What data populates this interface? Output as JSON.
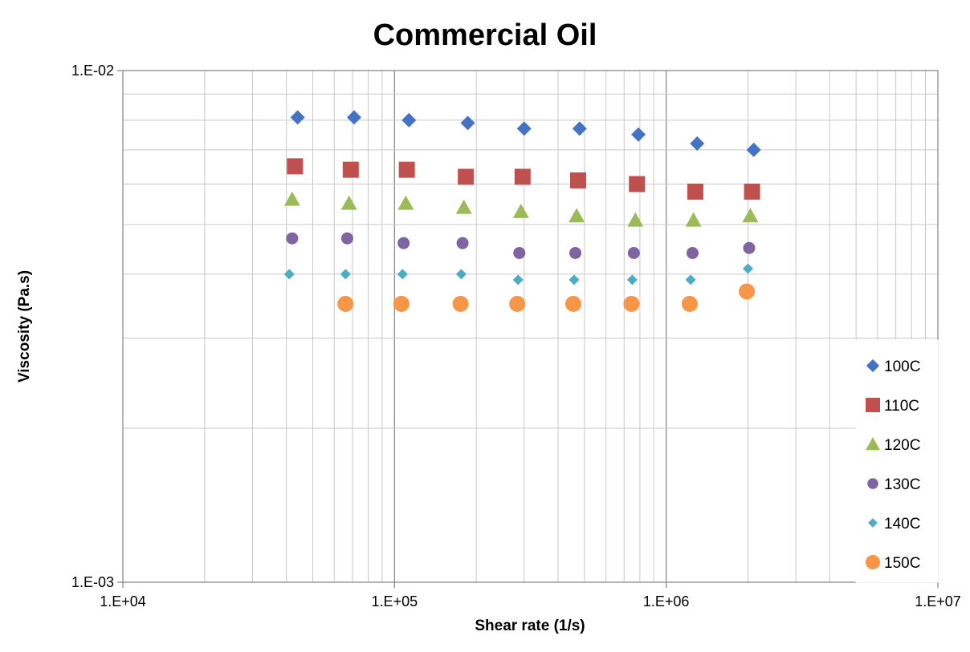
{
  "chart_data": {
    "type": "scatter",
    "title": "Commercial Oil",
    "xlabel": "Shear rate (1/s)",
    "ylabel": "Viscosity (Pa.s)",
    "x_scale": "log",
    "y_scale": "log",
    "xlim": [
      10000,
      10000000
    ],
    "ylim": [
      0.001,
      0.01
    ],
    "x_ticks": [
      "1.E+04",
      "1.E+05",
      "1.E+06",
      "1.E+07"
    ],
    "y_ticks": [
      "1.E-03",
      "1.E-02"
    ],
    "grid": true,
    "legend_position": "right",
    "series": [
      {
        "name": "100C",
        "marker": "diamond",
        "color": "#4472C4",
        "x": [
          44000,
          71000,
          113000,
          186000,
          300000,
          480000,
          790000,
          1300000,
          2100000
        ],
        "y": [
          0.0081,
          0.0081,
          0.008,
          0.0079,
          0.0077,
          0.0077,
          0.0075,
          0.0072,
          0.007
        ]
      },
      {
        "name": "110C",
        "marker": "square",
        "color": "#C0504D",
        "x": [
          43000,
          69000,
          111000,
          183000,
          296000,
          474000,
          780000,
          1280000,
          2070000
        ],
        "y": [
          0.0065,
          0.0064,
          0.0064,
          0.0062,
          0.0062,
          0.0061,
          0.006,
          0.0058,
          0.0058
        ]
      },
      {
        "name": "120C",
        "marker": "triangle",
        "color": "#9BBB59",
        "x": [
          42000,
          68000,
          110000,
          180000,
          292000,
          468000,
          770000,
          1260000,
          2040000
        ],
        "y": [
          0.0056,
          0.0055,
          0.0055,
          0.0054,
          0.0053,
          0.0052,
          0.0051,
          0.0051,
          0.0052
        ]
      },
      {
        "name": "130C",
        "marker": "circle",
        "color": "#8064A2",
        "x": [
          42000,
          67000,
          108000,
          178000,
          288000,
          463000,
          760000,
          1250000,
          2020000
        ],
        "y": [
          0.0047,
          0.0047,
          0.0046,
          0.0046,
          0.0044,
          0.0044,
          0.0044,
          0.0044,
          0.0045
        ]
      },
      {
        "name": "140C",
        "marker": "diamond",
        "color": "#4BACC6",
        "x": [
          41000,
          66000,
          107000,
          176000,
          285000,
          458000,
          750000,
          1230000,
          2000000
        ],
        "y": [
          0.004,
          0.004,
          0.004,
          0.004,
          0.0039,
          0.0039,
          0.0039,
          0.0039,
          0.0041
        ]
      },
      {
        "name": "150C",
        "marker": "circle",
        "color": "#F79646",
        "x": [
          66000,
          106000,
          175000,
          283000,
          455000,
          745000,
          1220000,
          1980000
        ],
        "y": [
          0.0035,
          0.0035,
          0.0035,
          0.0035,
          0.0035,
          0.0035,
          0.0035,
          0.0037
        ]
      }
    ]
  }
}
